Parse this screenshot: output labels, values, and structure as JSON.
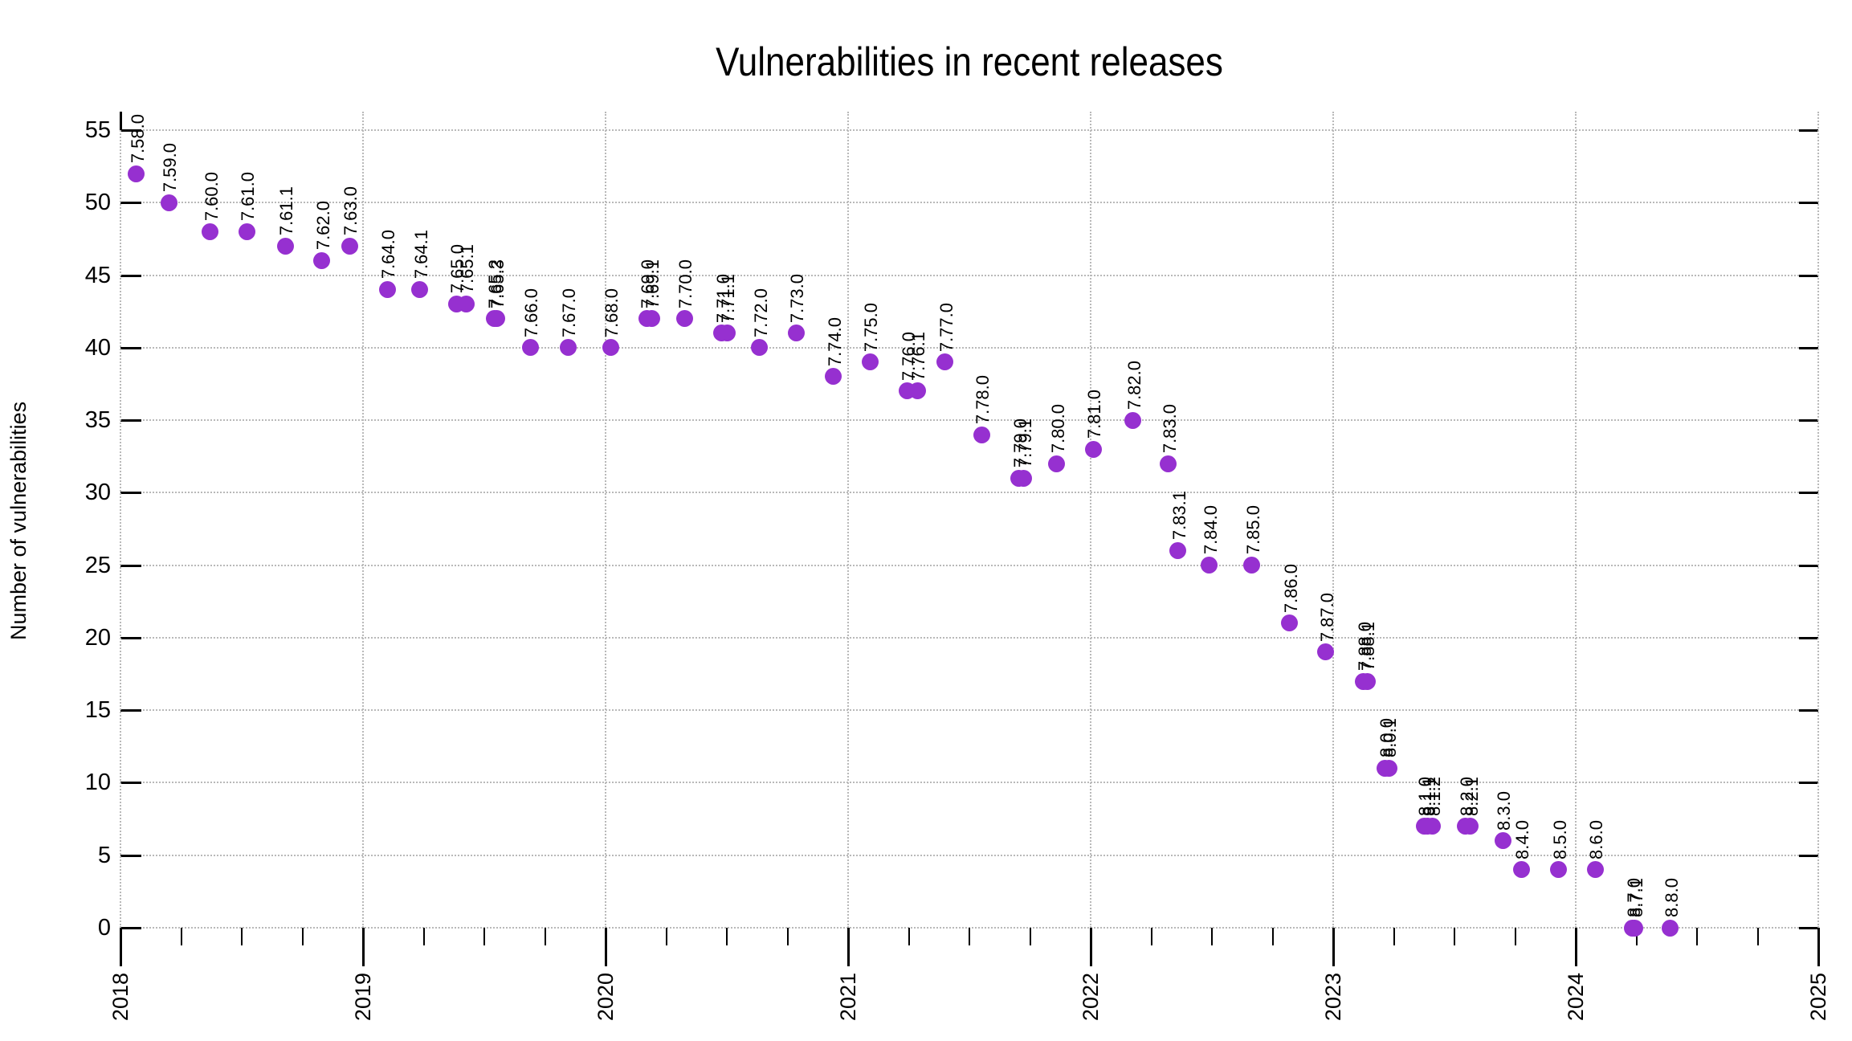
{
  "colors": {
    "point": "#9630D0",
    "grid": "#b9b9b9",
    "axis": "#000000",
    "text": "#000000"
  },
  "y_axis": {
    "label": "Number of vulnerabilities",
    "ticks": [
      0,
      5,
      10,
      15,
      20,
      25,
      30,
      35,
      40,
      45,
      50,
      55
    ]
  },
  "x_axis": {
    "ticks": [
      2018,
      2019,
      2020,
      2021,
      2022,
      2023,
      2024,
      2025
    ],
    "minor_ticks_per_interval": 3
  },
  "chart_data": {
    "type": "scatter",
    "title": "Vulnerabilities in recent releases",
    "xlabel": "",
    "ylabel": "Number of vulnerabilities",
    "xlim": [
      2018,
      2025
    ],
    "ylim": [
      0,
      55
    ],
    "grid": true,
    "legend_position": "none",
    "marker": "filled-circle",
    "point_labels_rotated_degrees": 90,
    "points": [
      {
        "version": "7.58.0",
        "x": 2018.065,
        "y": 52
      },
      {
        "version": "7.59.0",
        "x": 2018.2,
        "y": 50
      },
      {
        "version": "7.60.0",
        "x": 2018.37,
        "y": 48
      },
      {
        "version": "7.61.0",
        "x": 2018.52,
        "y": 48
      },
      {
        "version": "7.61.1",
        "x": 2018.68,
        "y": 47
      },
      {
        "version": "7.62.0",
        "x": 2018.83,
        "y": 46
      },
      {
        "version": "7.63.0",
        "x": 2018.945,
        "y": 47
      },
      {
        "version": "7.64.0",
        "x": 2019.1,
        "y": 44
      },
      {
        "version": "7.64.1",
        "x": 2019.235,
        "y": 44
      },
      {
        "version": "7.65.0",
        "x": 2019.385,
        "y": 43
      },
      {
        "version": "7.65.1",
        "x": 2019.425,
        "y": 43
      },
      {
        "version": "7.65.2",
        "x": 2019.54,
        "y": 42
      },
      {
        "version": "7.65.3",
        "x": 2019.55,
        "y": 42
      },
      {
        "version": "7.66.0",
        "x": 2019.69,
        "y": 40
      },
      {
        "version": "7.67.0",
        "x": 2019.845,
        "y": 40
      },
      {
        "version": "7.68.0",
        "x": 2020.02,
        "y": 40
      },
      {
        "version": "7.69.0",
        "x": 2020.17,
        "y": 42
      },
      {
        "version": "7.69.1",
        "x": 2020.19,
        "y": 42
      },
      {
        "version": "7.70.0",
        "x": 2020.325,
        "y": 42
      },
      {
        "version": "7.71.0",
        "x": 2020.48,
        "y": 41
      },
      {
        "version": "7.71.1",
        "x": 2020.5,
        "y": 41
      },
      {
        "version": "7.72.0",
        "x": 2020.635,
        "y": 40
      },
      {
        "version": "7.73.0",
        "x": 2020.785,
        "y": 41
      },
      {
        "version": "7.74.0",
        "x": 2020.94,
        "y": 38
      },
      {
        "version": "7.75.0",
        "x": 2021.09,
        "y": 39
      },
      {
        "version": "7.76.0",
        "x": 2021.245,
        "y": 37
      },
      {
        "version": "7.76.1",
        "x": 2021.285,
        "y": 37
      },
      {
        "version": "7.77.0",
        "x": 2021.4,
        "y": 39
      },
      {
        "version": "7.78.0",
        "x": 2021.55,
        "y": 34
      },
      {
        "version": "7.79.0",
        "x": 2021.705,
        "y": 31
      },
      {
        "version": "7.79.1",
        "x": 2021.725,
        "y": 31
      },
      {
        "version": "7.80.0",
        "x": 2021.86,
        "y": 32
      },
      {
        "version": "7.81.0",
        "x": 2022.01,
        "y": 33
      },
      {
        "version": "7.82.0",
        "x": 2022.175,
        "y": 35
      },
      {
        "version": "7.83.0",
        "x": 2022.32,
        "y": 32
      },
      {
        "version": "7.83.1",
        "x": 2022.36,
        "y": 26
      },
      {
        "version": "7.84.0",
        "x": 2022.49,
        "y": 25
      },
      {
        "version": "7.85.0",
        "x": 2022.665,
        "y": 25
      },
      {
        "version": "7.86.0",
        "x": 2022.82,
        "y": 21
      },
      {
        "version": "7.87.0",
        "x": 2022.97,
        "y": 19
      },
      {
        "version": "7.88.0",
        "x": 2023.125,
        "y": 17
      },
      {
        "version": "7.88.1",
        "x": 2023.14,
        "y": 17
      },
      {
        "version": "8.0.0",
        "x": 2023.215,
        "y": 11
      },
      {
        "version": "8.0.1",
        "x": 2023.23,
        "y": 11
      },
      {
        "version": "8.1.0",
        "x": 2023.375,
        "y": 7
      },
      {
        "version": "8.1.1",
        "x": 2023.39,
        "y": 7
      },
      {
        "version": "8.1.2",
        "x": 2023.41,
        "y": 7
      },
      {
        "version": "8.2.0",
        "x": 2023.545,
        "y": 7
      },
      {
        "version": "8.2.1",
        "x": 2023.565,
        "y": 7
      },
      {
        "version": "8.3.0",
        "x": 2023.7,
        "y": 6
      },
      {
        "version": "8.4.0",
        "x": 2023.775,
        "y": 4
      },
      {
        "version": "8.5.0",
        "x": 2023.93,
        "y": 4
      },
      {
        "version": "8.6.0",
        "x": 2024.08,
        "y": 4
      },
      {
        "version": "8.7.0",
        "x": 2024.235,
        "y": 0
      },
      {
        "version": "8.7.1",
        "x": 2024.245,
        "y": 0
      },
      {
        "version": "8.8.0",
        "x": 2024.39,
        "y": 0
      }
    ]
  }
}
